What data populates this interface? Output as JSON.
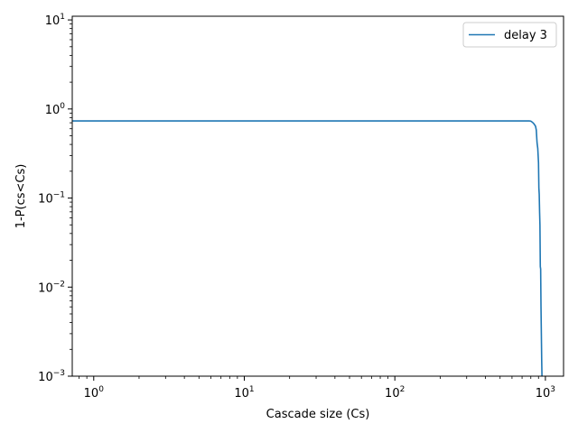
{
  "chart_data": {
    "type": "line",
    "title": "",
    "xlabel": "Cascade size (Cs)",
    "ylabel": "1-P(cs<Cs)",
    "xscale": "log",
    "yscale": "log",
    "xlim": [
      0.72,
      1320
    ],
    "ylim": [
      0.001,
      11
    ],
    "grid": false,
    "legend_position": "top-right",
    "x_ticks": [
      {
        "value": 1,
        "base": "10",
        "exp": "0"
      },
      {
        "value": 10,
        "base": "10",
        "exp": "1"
      },
      {
        "value": 100,
        "base": "10",
        "exp": "2"
      },
      {
        "value": 1000,
        "base": "10",
        "exp": "3"
      }
    ],
    "y_ticks": [
      {
        "value": 0.001,
        "base": "10",
        "exp": "−3"
      },
      {
        "value": 0.01,
        "base": "10",
        "exp": "−2"
      },
      {
        "value": 0.1,
        "base": "10",
        "exp": "−1"
      },
      {
        "value": 1,
        "base": "10",
        "exp": "0"
      },
      {
        "value": 10,
        "base": "10",
        "exp": "1"
      }
    ],
    "series": [
      {
        "name": "delay 3",
        "color": "#1f77b4",
        "x": [
          0.72,
          1,
          10,
          100,
          500,
          780,
          800,
          820,
          840,
          860,
          870,
          880,
          890,
          900,
          905,
          910,
          915,
          920,
          925,
          930,
          935,
          940,
          945,
          950
        ],
        "y": [
          0.735,
          0.735,
          0.735,
          0.735,
          0.735,
          0.735,
          0.73,
          0.71,
          0.68,
          0.64,
          0.58,
          0.42,
          0.36,
          0.25,
          0.13,
          0.11,
          0.07,
          0.05,
          0.017,
          0.016,
          0.006,
          0.003,
          0.0015,
          0.0009
        ]
      }
    ]
  }
}
